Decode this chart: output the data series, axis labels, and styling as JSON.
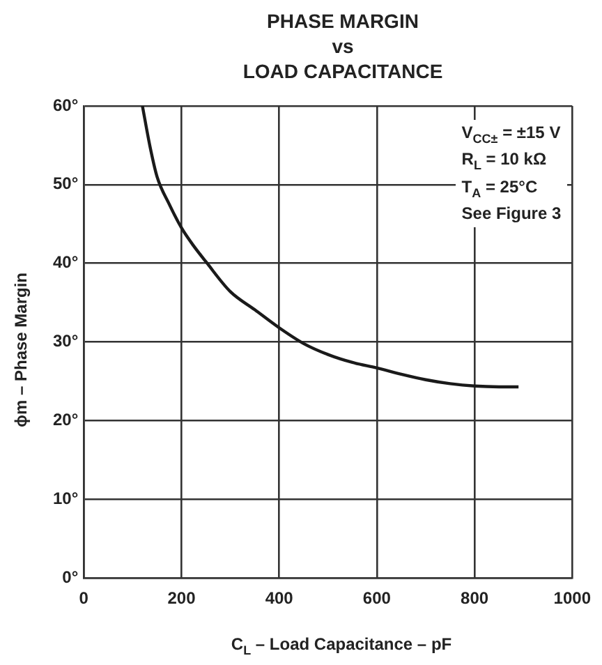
{
  "chart_data": {
    "type": "line",
    "title": "PHASE MARGIN\nvs\nLOAD CAPACITANCE",
    "xlabel": "C$_{L}$ – Load Capacitance – pF",
    "ylabel": "ϕm – Phase Margin",
    "annotations": [
      "V$_{CC±}$ = ±15 V",
      "R$_{L}$ = 10 kΩ",
      "T$_{A}$ = 25°C",
      "See Figure 3"
    ],
    "x": [
      120,
      135,
      150,
      175,
      200,
      225,
      250,
      300,
      350,
      400,
      450,
      500,
      550,
      600,
      650,
      700,
      750,
      800,
      850,
      890
    ],
    "series": [
      {
        "color": "#1a1a1a",
        "values": [
          60,
          55,
          51,
          47.5,
          44.5,
          42.2,
          40.2,
          36.4,
          34.1,
          31.8,
          29.8,
          28.4,
          27.4,
          26.7,
          25.9,
          25.2,
          24.7,
          24.4,
          24.3,
          24.3
        ]
      }
    ],
    "xlim": [
      0,
      1000
    ],
    "xticks": [
      0,
      200,
      400,
      600,
      800,
      1000
    ],
    "ylim": [
      0,
      60
    ],
    "yticks": [
      {
        "value": 0,
        "label": "0°"
      },
      {
        "value": 10,
        "label": "10°"
      },
      {
        "value": 20,
        "label": "20°"
      },
      {
        "value": 30,
        "label": "30°"
      },
      {
        "value": 40,
        "label": "40°"
      },
      {
        "value": 50,
        "label": "50°"
      },
      {
        "value": 60,
        "label": "60°"
      }
    ],
    "grid": true,
    "legend": false,
    "marker": "none",
    "line_style": "solid"
  }
}
